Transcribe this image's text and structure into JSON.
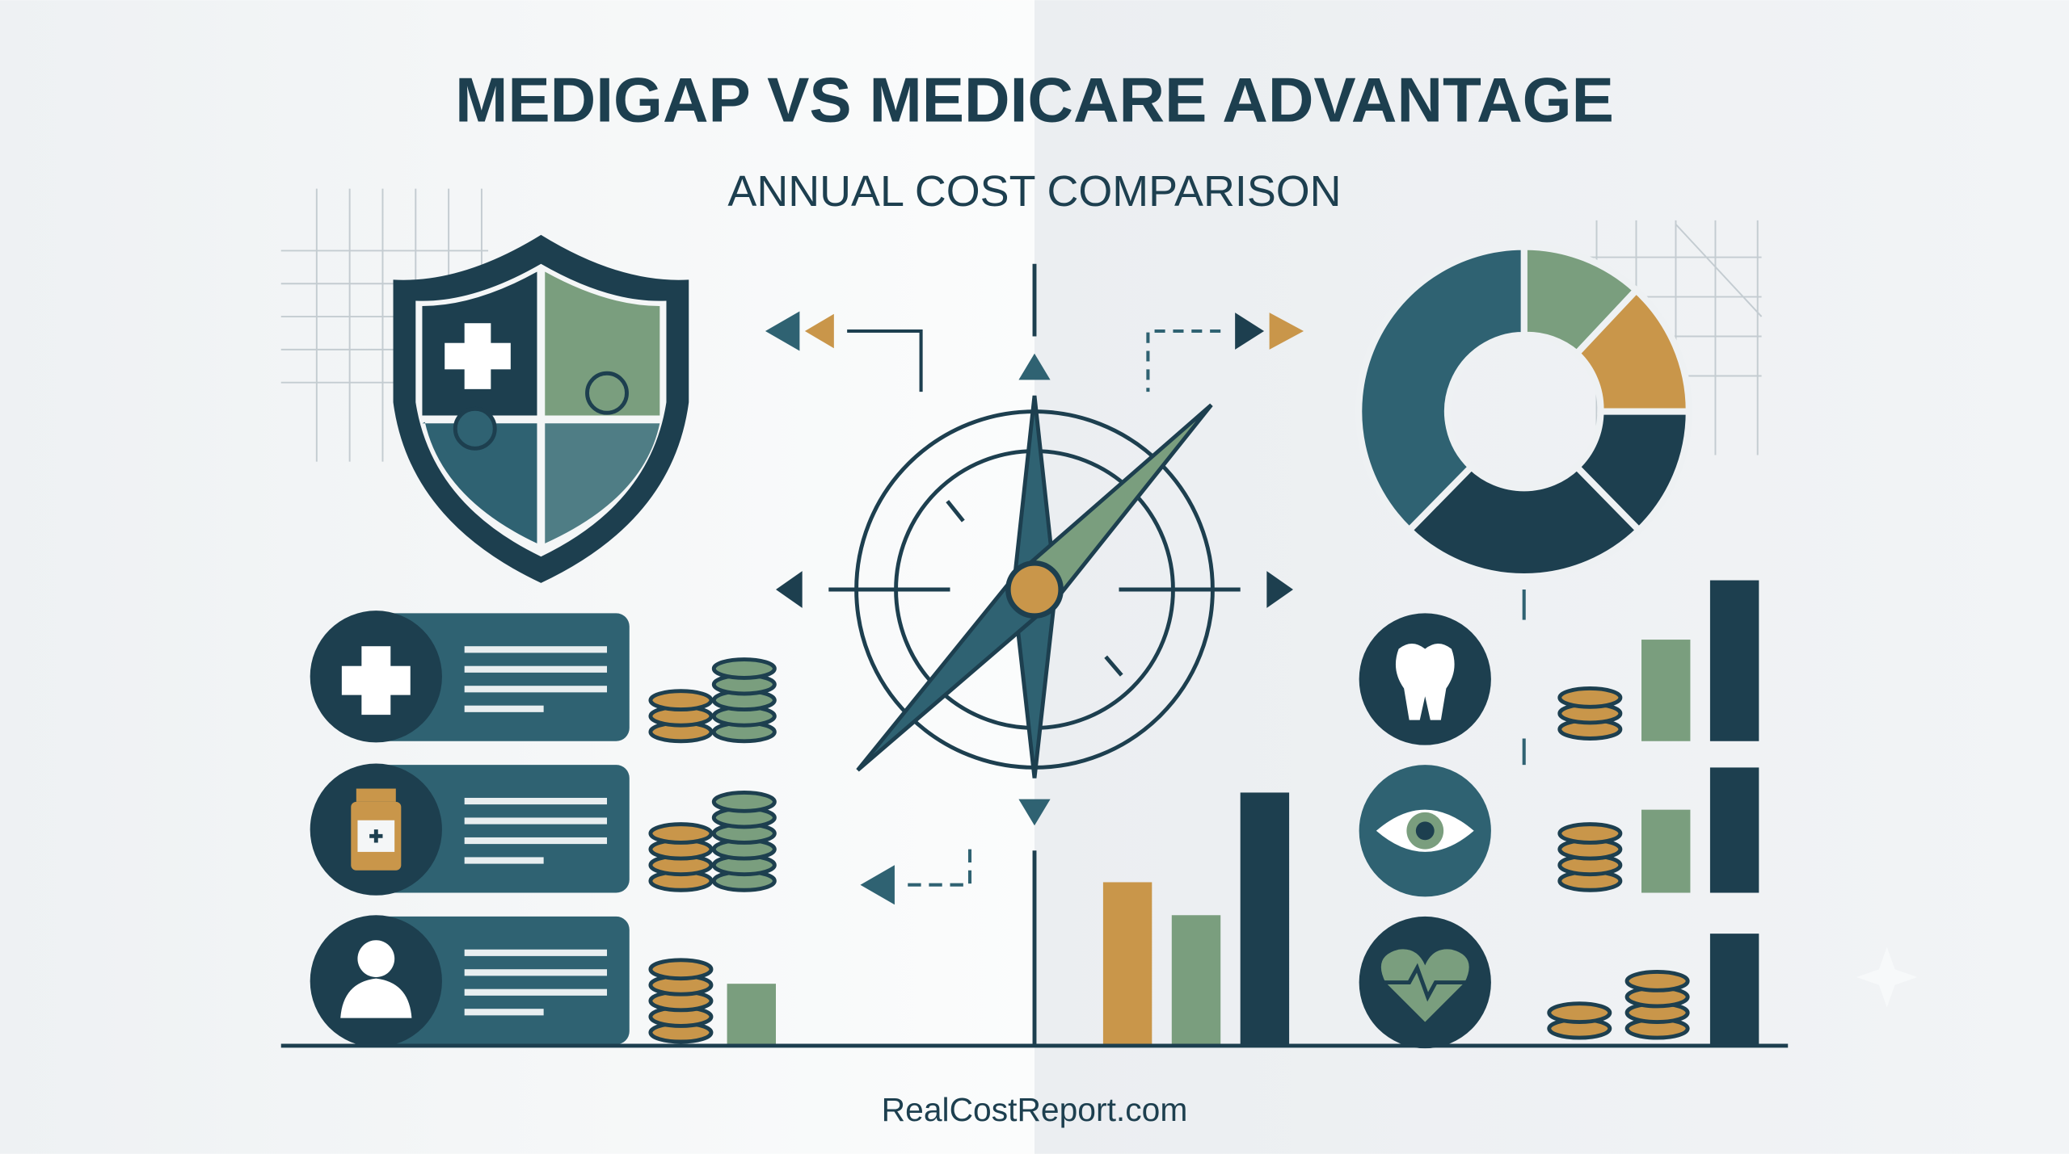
{
  "header": {
    "title": "MEDIGAP VS MEDICARE ADVANTAGE",
    "subtitle": "ANNUAL COST COMPARISON"
  },
  "footer": {
    "text": "RealCostReport.com"
  }
}
